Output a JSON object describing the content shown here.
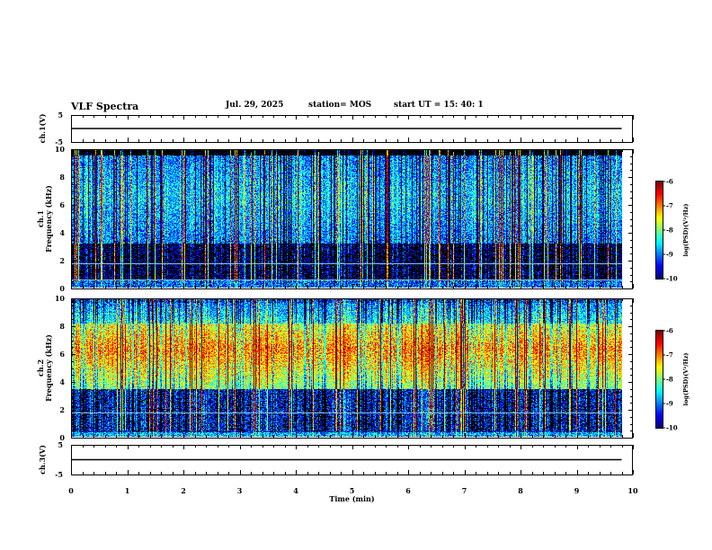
{
  "header": {
    "title": "VLF Spectra",
    "date": "Jul. 29, 2025",
    "station": "station= MOS",
    "start": "start UT = 15: 40: 1"
  },
  "chart_data": [
    {
      "type": "line",
      "ylabel": "ch.1(V)",
      "ylim": [
        -5,
        5
      ],
      "yticks": [
        "5",
        "-5"
      ],
      "xlim": [
        0,
        10
      ],
      "series": [
        {
          "values_description_free": true,
          "x": [
            0,
            9.8
          ],
          "y": [
            0,
            0
          ]
        }
      ]
    },
    {
      "type": "heatmap",
      "ylabel": "ch.1\nFrequency (kHz)",
      "ylabel_lines": [
        "ch.1",
        "Frequency (kHz)"
      ],
      "ylim": [
        0,
        10
      ],
      "yticks": [
        "0",
        "2",
        "4",
        "6",
        "8",
        "10"
      ],
      "xlim": [
        0,
        10
      ],
      "data_xrange": [
        0,
        9.8
      ],
      "colorbar": {
        "label": "log(PSD)(V²/Hz)",
        "range": [
          -10,
          -6
        ],
        "ticks": [
          "-6",
          "-7",
          "-8",
          "-9",
          "-10"
        ]
      },
      "hlines_khz": [
        0.5,
        1.7
      ]
    },
    {
      "type": "heatmap",
      "ylabel_lines": [
        "ch.2",
        "Frequency (kHz)"
      ],
      "ylim": [
        0,
        10
      ],
      "yticks": [
        "0",
        "2",
        "4",
        "6",
        "8",
        "10"
      ],
      "xlim": [
        0,
        10
      ],
      "data_xrange": [
        0,
        9.8
      ],
      "colorbar": {
        "label": "log(PSD)(V²/Hz)",
        "range": [
          -10,
          -6
        ],
        "ticks": [
          "-6",
          "-7",
          "-8",
          "-9",
          "-10"
        ]
      },
      "hlines_khz": [
        1.7
      ]
    },
    {
      "type": "line",
      "ylabel": "ch.3(V)",
      "ylim": [
        -5,
        5
      ],
      "yticks": [
        "5",
        "-5"
      ],
      "xlim": [
        0,
        10
      ],
      "series": [
        {
          "x": [
            0,
            9.8
          ],
          "y": [
            0,
            0
          ]
        }
      ]
    }
  ],
  "xaxis": {
    "label": "Time (min)",
    "ticks": [
      "0",
      "1",
      "2",
      "3",
      "4",
      "5",
      "6",
      "7",
      "8",
      "9",
      "10"
    ]
  },
  "colors": {
    "background": "#ffffff",
    "no_signal": "#000000",
    "hline": "#7fc8ff"
  }
}
